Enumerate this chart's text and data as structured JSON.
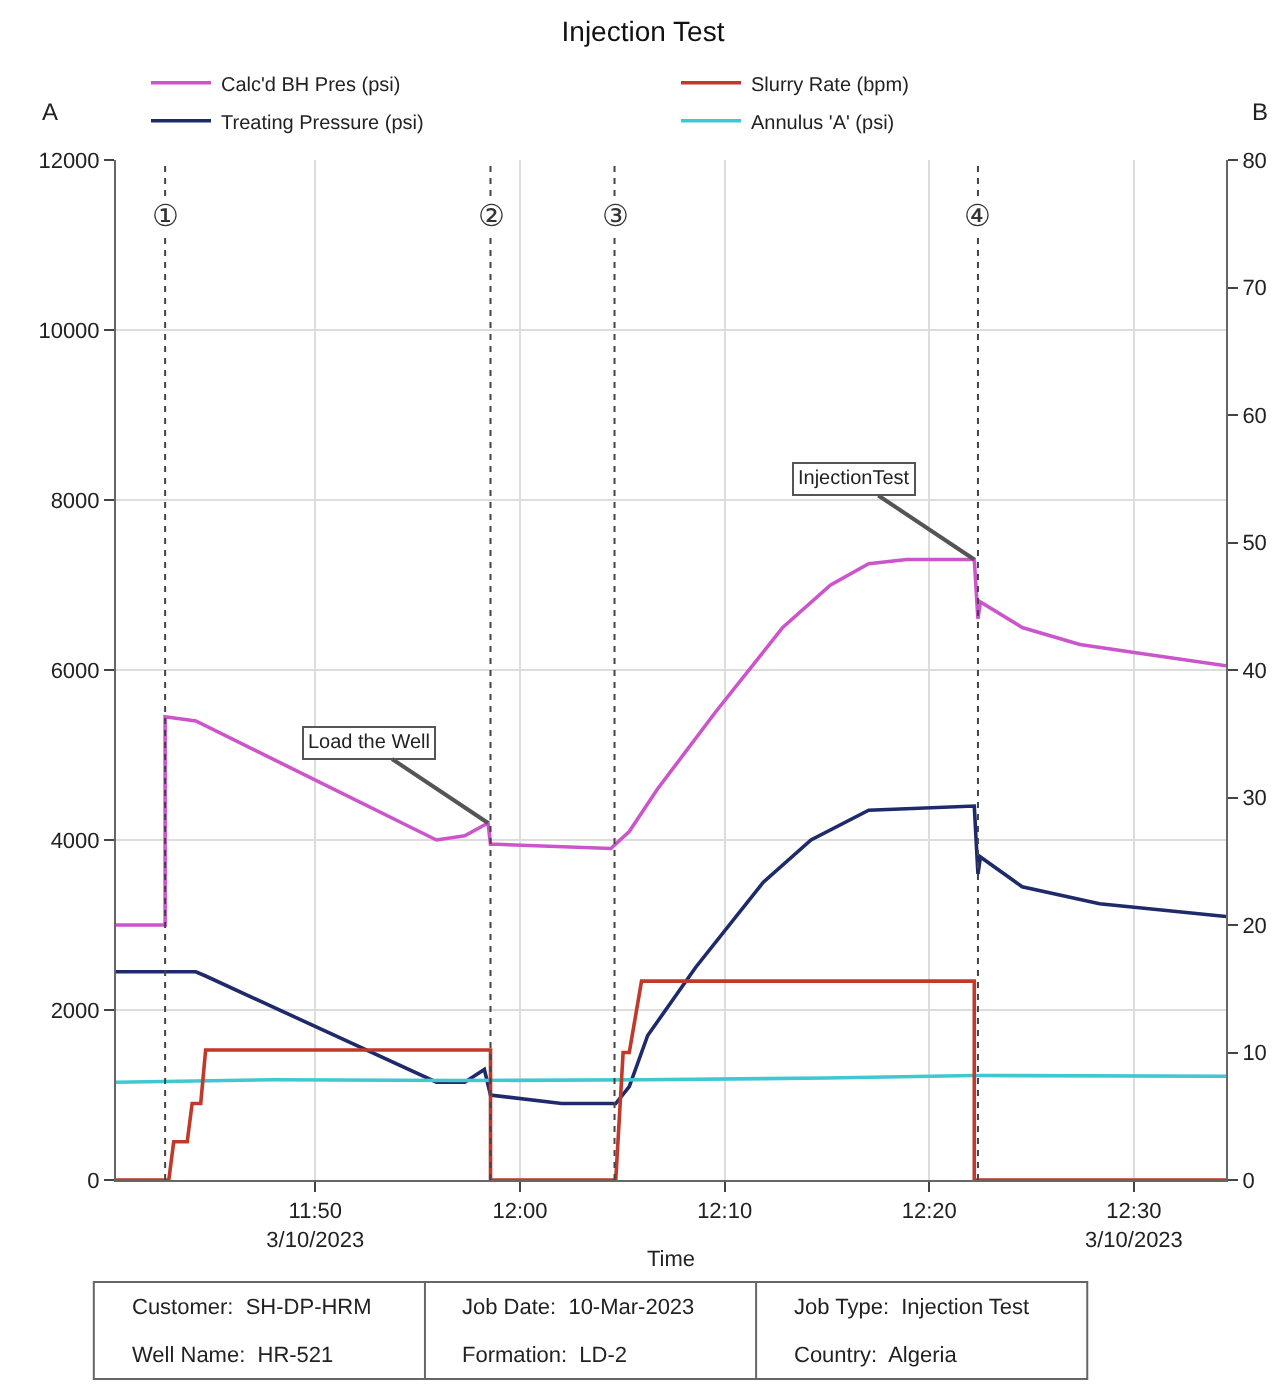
{
  "chart_data": {
    "type": "line",
    "title": "Injection Test",
    "xlabel": "Time",
    "ylabel": "A",
    "y2label": "B",
    "xlim": [
      11.671,
      12.575
    ],
    "xticks": [
      {
        "value": 11.8333,
        "label": "11:50\n3/10/2023"
      },
      {
        "value": 12,
        "label": "12:00"
      },
      {
        "value": 12.1667,
        "label": "12:10"
      },
      {
        "value": 12.3333,
        "label": "12:20"
      },
      {
        "value": 12.5,
        "label": "12:30\n3/10/2023"
      }
    ],
    "ylim": [
      0,
      12000
    ],
    "yticks": [
      0,
      2000,
      4000,
      6000,
      8000,
      10000,
      12000
    ],
    "y2lim": [
      0,
      80
    ],
    "y2ticks": [
      0,
      10,
      20,
      30,
      40,
      50,
      60,
      70,
      80
    ],
    "grid": true,
    "legend": "top",
    "line_style": "solid",
    "marker": "none",
    "series": [
      {
        "name": "Calc'd BH Pres (psi)",
        "color": "#cc55cc",
        "x": [
          11.671,
          11.711,
          11.711,
          11.736,
          11.932,
          11.955,
          11.974,
          11.976,
          11.981,
          12.074,
          12.089,
          12.112,
          12.159,
          12.214,
          12.253,
          12.284,
          12.315,
          12.37,
          12.373,
          12.375,
          12.409,
          12.456,
          12.503,
          12.575
        ],
        "values": [
          3000,
          3000,
          5450,
          5400,
          4000,
          4050,
          4200,
          3950,
          3950,
          3900,
          4100,
          4600,
          5500,
          6500,
          7000,
          7250,
          7300,
          7300,
          6600,
          6800,
          6500,
          6300,
          6200,
          6050
        ]
      },
      {
        "name": "Slurry Rate (bpm)",
        "color": "#c0392b",
        "axis": "y2",
        "x": [
          11.671,
          11.714,
          11.718,
          11.729,
          11.733,
          11.74,
          11.744,
          11.976,
          11.976,
          12.078,
          12.084,
          12.089,
          12.099,
          12.37,
          12.37,
          12.575
        ],
        "values": [
          0,
          0,
          3,
          3,
          6,
          6,
          10.2,
          10.2,
          0,
          0,
          10,
          10,
          15.6,
          15.6,
          0,
          0
        ]
      },
      {
        "name": "Treating Pressure (psi)",
        "color": "#1f2a6b",
        "x": [
          11.671,
          11.736,
          11.744,
          11.932,
          11.955,
          11.971,
          11.976,
          12.034,
          12.078,
          12.089,
          12.104,
          12.143,
          12.198,
          12.237,
          12.284,
          12.37,
          12.373,
          12.375,
          12.409,
          12.472,
          12.575
        ],
        "values": [
          2450,
          2450,
          2400,
          1150,
          1150,
          1300,
          1000,
          900,
          900,
          1100,
          1700,
          2500,
          3500,
          4000,
          4350,
          4400,
          3600,
          3800,
          3450,
          3250,
          3100
        ]
      },
      {
        "name": "Annulus 'A' (psi)",
        "color": "#40c8d0",
        "x": [
          11.671,
          11.8,
          11.95,
          12.1,
          12.25,
          12.37,
          12.575
        ],
        "values": [
          1150,
          1180,
          1170,
          1180,
          1200,
          1230,
          1220
        ]
      }
    ],
    "ref_lines": [
      {
        "axis": "x",
        "value": 11.711,
        "label": "①",
        "color": "#444444",
        "line_style": "dotted"
      },
      {
        "axis": "x",
        "value": 11.976,
        "label": "②",
        "color": "#444444",
        "line_style": "dotted"
      },
      {
        "axis": "x",
        "value": 12.077,
        "label": "③",
        "color": "#444444",
        "line_style": "dotted"
      },
      {
        "axis": "x",
        "value": 12.373,
        "label": "④",
        "color": "#444444",
        "line_style": "dotted"
      }
    ],
    "annotations": [
      {
        "text": "Load the Well",
        "x": 11.974,
        "y": 4200
      },
      {
        "text": "InjectionTest",
        "x": 12.37,
        "y": 7300
      },
      "Customer:  SH-DP-HRM",
      "Well Name:  HR-521",
      "Job Date:  10-Mar-2023",
      "Formation:  LD-2",
      "Job Type:  Injection Test",
      "Country:  Algeria"
    ]
  }
}
